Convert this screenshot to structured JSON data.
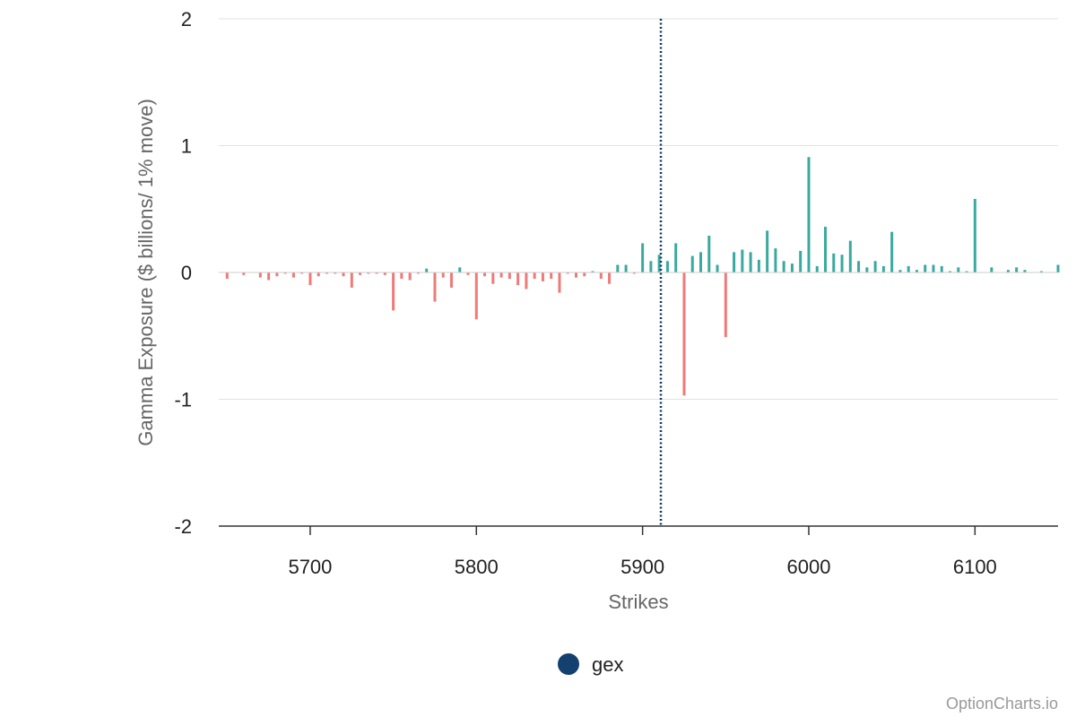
{
  "chart_data": {
    "type": "bar",
    "xlabel": "Strikes",
    "ylabel": "Gamma Exposure ($ billions/ 1% move)",
    "xlim": [
      5645,
      6150
    ],
    "ylim": [
      -2,
      2
    ],
    "x_ticks": [
      5700,
      5800,
      5900,
      6000,
      6100
    ],
    "y_ticks": [
      2,
      1,
      0,
      -1,
      -2
    ],
    "spot_line": 5911,
    "series": [
      {
        "name": "gex",
        "x": [
          5650,
          5660,
          5670,
          5675,
          5680,
          5685,
          5690,
          5695,
          5700,
          5705,
          5710,
          5715,
          5720,
          5725,
          5730,
          5735,
          5740,
          5745,
          5750,
          5755,
          5760,
          5765,
          5770,
          5775,
          5780,
          5785,
          5790,
          5795,
          5800,
          5805,
          5810,
          5815,
          5820,
          5825,
          5830,
          5835,
          5840,
          5845,
          5850,
          5855,
          5860,
          5865,
          5870,
          5875,
          5880,
          5885,
          5890,
          5895,
          5900,
          5905,
          5910,
          5915,
          5920,
          5925,
          5930,
          5935,
          5940,
          5945,
          5950,
          5955,
          5960,
          5965,
          5970,
          5975,
          5980,
          5985,
          5990,
          5995,
          6000,
          6005,
          6010,
          6015,
          6020,
          6025,
          6030,
          6035,
          6040,
          6045,
          6050,
          6055,
          6060,
          6065,
          6070,
          6075,
          6080,
          6085,
          6090,
          6095,
          6100,
          6110,
          6120,
          6125,
          6130,
          6140,
          6150
        ],
        "values": [
          -0.05,
          -0.02,
          -0.04,
          -0.06,
          -0.03,
          -0.01,
          -0.04,
          -0.01,
          -0.1,
          -0.03,
          -0.01,
          -0.01,
          -0.03,
          -0.12,
          -0.02,
          -0.01,
          -0.01,
          -0.02,
          -0.3,
          -0.05,
          -0.06,
          -0.01,
          0.03,
          -0.23,
          -0.04,
          -0.12,
          0.04,
          -0.02,
          -0.37,
          -0.03,
          -0.09,
          -0.04,
          -0.05,
          -0.1,
          -0.13,
          -0.05,
          -0.07,
          -0.05,
          -0.16,
          -0.01,
          -0.04,
          -0.03,
          0.01,
          -0.05,
          -0.09,
          0.06,
          0.06,
          -0.01,
          0.23,
          0.09,
          0.14,
          0.09,
          0.23,
          -0.97,
          0.13,
          0.16,
          0.29,
          0.06,
          -0.51,
          0.16,
          0.18,
          0.16,
          0.1,
          0.33,
          0.19,
          0.09,
          0.07,
          0.17,
          0.91,
          0.05,
          0.36,
          0.15,
          0.14,
          0.25,
          0.09,
          0.04,
          0.09,
          0.05,
          0.32,
          0.02,
          0.05,
          0.02,
          0.06,
          0.06,
          0.05,
          0.01,
          0.04,
          0.01,
          0.58,
          0.04,
          0.02,
          0.04,
          0.02,
          0.01,
          0.06
        ]
      }
    ],
    "colors": {
      "positive": "#3aa99f",
      "negative": "#f07a78",
      "spot_line": "#12375e",
      "legend_marker": "#13406e"
    },
    "legend": {
      "label": "gex",
      "position": "bottom-center"
    }
  },
  "credit": "OptionCharts.io"
}
